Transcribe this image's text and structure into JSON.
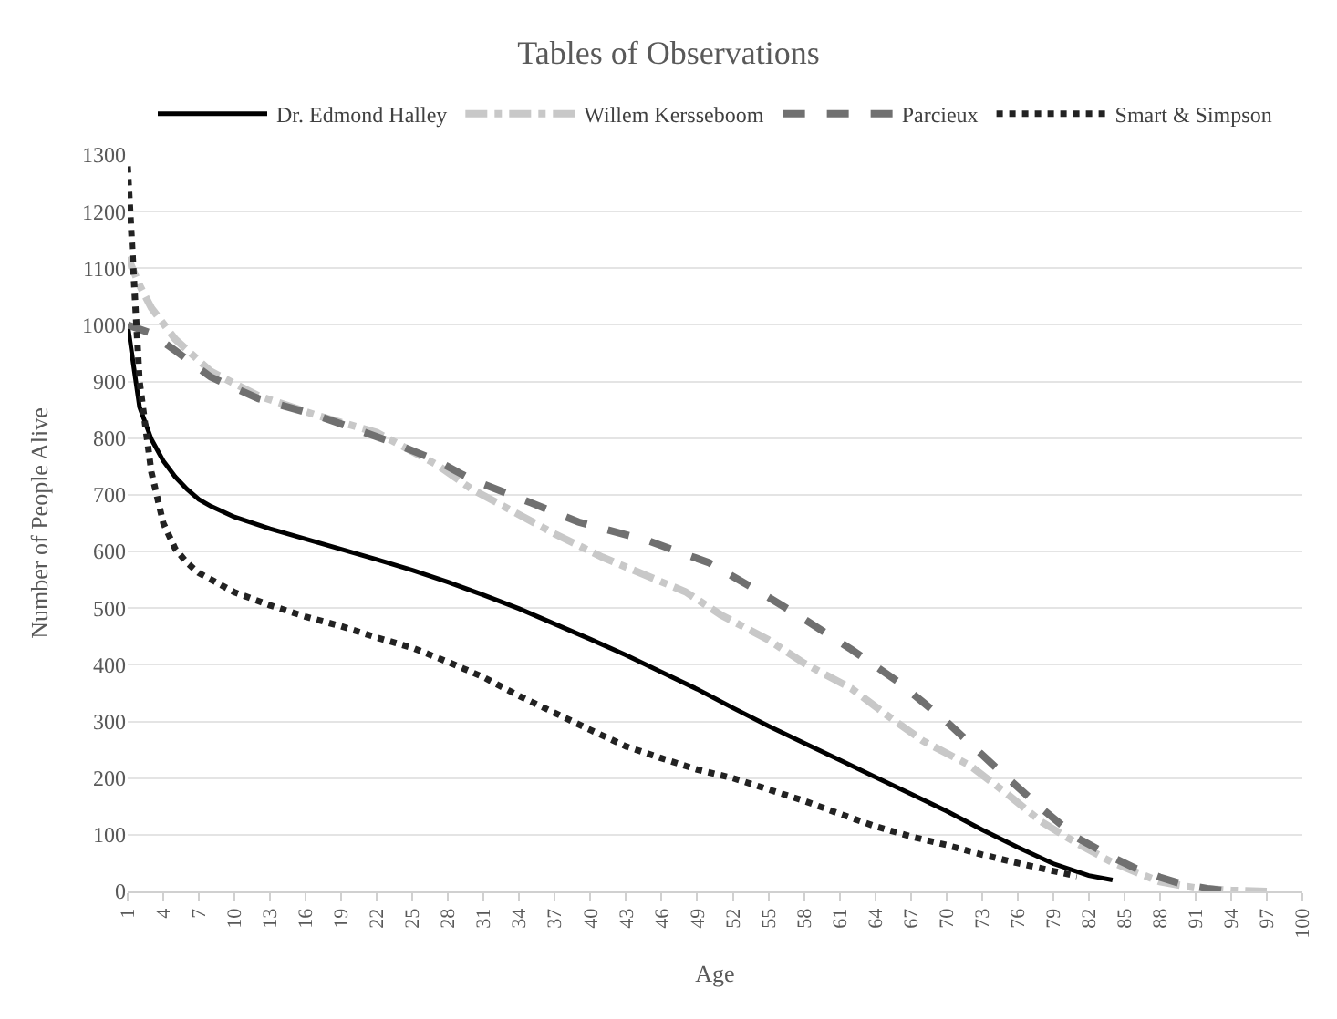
{
  "chart_data": {
    "type": "line",
    "title": "Tables of Observations",
    "xlabel": "Age",
    "ylabel": "Number of People Alive",
    "xlim": [
      1,
      100
    ],
    "xticks": [
      1,
      4,
      7,
      10,
      13,
      16,
      19,
      22,
      25,
      28,
      31,
      34,
      37,
      40,
      43,
      46,
      49,
      52,
      55,
      58,
      61,
      64,
      67,
      70,
      73,
      76,
      79,
      82,
      85,
      88,
      91,
      94,
      97,
      100
    ],
    "ylim": [
      0,
      1300
    ],
    "yticks": [
      0,
      100,
      200,
      300,
      400,
      500,
      600,
      700,
      800,
      900,
      1000,
      1100,
      1200,
      1300
    ],
    "grid": "y",
    "legend": "top",
    "marker": "none",
    "series": [
      {
        "name": "Dr. Edmond Halley",
        "color": "#000000",
        "line_style": "solid",
        "x": [
          1,
          2,
          3,
          4,
          5,
          6,
          7,
          8,
          10,
          13,
          16,
          19,
          22,
          25,
          28,
          31,
          34,
          37,
          40,
          43,
          46,
          49,
          52,
          55,
          58,
          61,
          64,
          67,
          70,
          73,
          76,
          79,
          82,
          84
        ],
        "values": [
          1000,
          855,
          798,
          760,
          732,
          710,
          692,
          680,
          661,
          640,
          622,
          604,
          586,
          567,
          546,
          523,
          499,
          472,
          445,
          417,
          387,
          357,
          324,
          292,
          262,
          232,
          202,
          172,
          142,
          109,
          78,
          49,
          28,
          20
        ]
      },
      {
        "name": "Willem Kersseboom",
        "color": "#c8c8c8",
        "line_style": "dashdot",
        "x": [
          1,
          2,
          3,
          5,
          8,
          12,
          17,
          22,
          27,
          30,
          34,
          37,
          41,
          45,
          48,
          51,
          55,
          58,
          62,
          65,
          68,
          72,
          75,
          78,
          81,
          84,
          88,
          91,
          94,
          97
        ],
        "values": [
          1120,
          1070,
          1030,
          975,
          918,
          875,
          840,
          810,
          754,
          710,
          665,
          631,
          590,
          555,
          529,
          488,
          444,
          403,
          358,
          311,
          266,
          222,
          174,
          123,
          85,
          51,
          17,
          6,
          2,
          0
        ]
      },
      {
        "name": "Parcieux",
        "color": "#707070",
        "line_style": "dashed",
        "x": [
          1,
          3,
          5,
          8,
          12,
          17,
          23,
          27,
          30,
          35,
          39,
          45,
          50,
          54,
          58,
          62,
          66,
          70,
          74,
          78,
          81,
          84,
          86,
          88,
          90,
          92,
          94
        ],
        "values": [
          1000,
          985,
          955,
          908,
          870,
          840,
          795,
          761,
          727,
          686,
          652,
          618,
          580,
          532,
          481,
          427,
          369,
          300,
          222,
          147,
          95,
          60,
          40,
          25,
          12,
          5,
          0
        ]
      },
      {
        "name": "Smart & Simpson",
        "color": "#222222",
        "line_style": "dotted",
        "x": [
          1,
          2,
          3,
          4,
          5,
          6,
          7,
          10,
          13,
          16,
          19,
          22,
          25,
          28,
          31,
          34,
          37,
          40,
          43,
          46,
          49,
          52,
          55,
          58,
          61,
          64,
          67,
          70,
          73,
          76,
          79,
          81
        ],
        "values": [
          1280,
          900,
          740,
          650,
          605,
          580,
          562,
          528,
          505,
          485,
          468,
          448,
          430,
          405,
          378,
          345,
          315,
          285,
          256,
          235,
          215,
          200,
          180,
          160,
          137,
          115,
          97,
          82,
          65,
          50,
          36,
          27
        ]
      }
    ]
  }
}
